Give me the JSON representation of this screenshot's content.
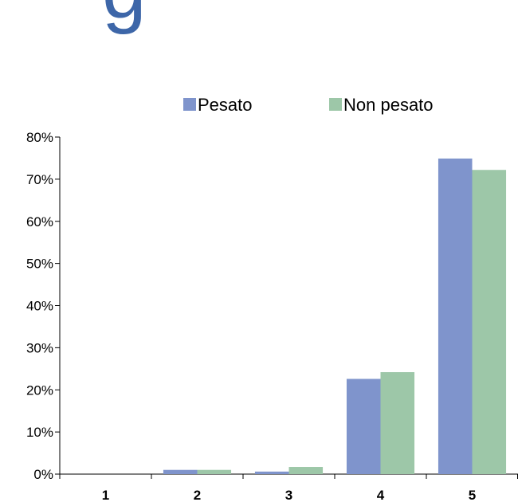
{
  "page": {
    "title_fragment": "g"
  },
  "chart_data": {
    "type": "bar",
    "categories": [
      "1",
      "2",
      "3",
      "4",
      "5"
    ],
    "series": [
      {
        "name": "Pesato",
        "color": "#7f94cc",
        "values": [
          0.0,
          1.0,
          0.6,
          22.6,
          74.9
        ]
      },
      {
        "name": "Non pesato",
        "color": "#9dc7a8",
        "values": [
          0.0,
          1.0,
          1.7,
          24.2,
          72.2
        ]
      }
    ],
    "y_ticks": [
      "0%",
      "10%",
      "20%",
      "30%",
      "40%",
      "50%",
      "60%",
      "70%",
      "80%"
    ],
    "ylim": [
      0,
      80
    ],
    "y_unit": "%",
    "legend_position": "top",
    "grid": false,
    "title": "",
    "xlabel": "",
    "ylabel": ""
  }
}
